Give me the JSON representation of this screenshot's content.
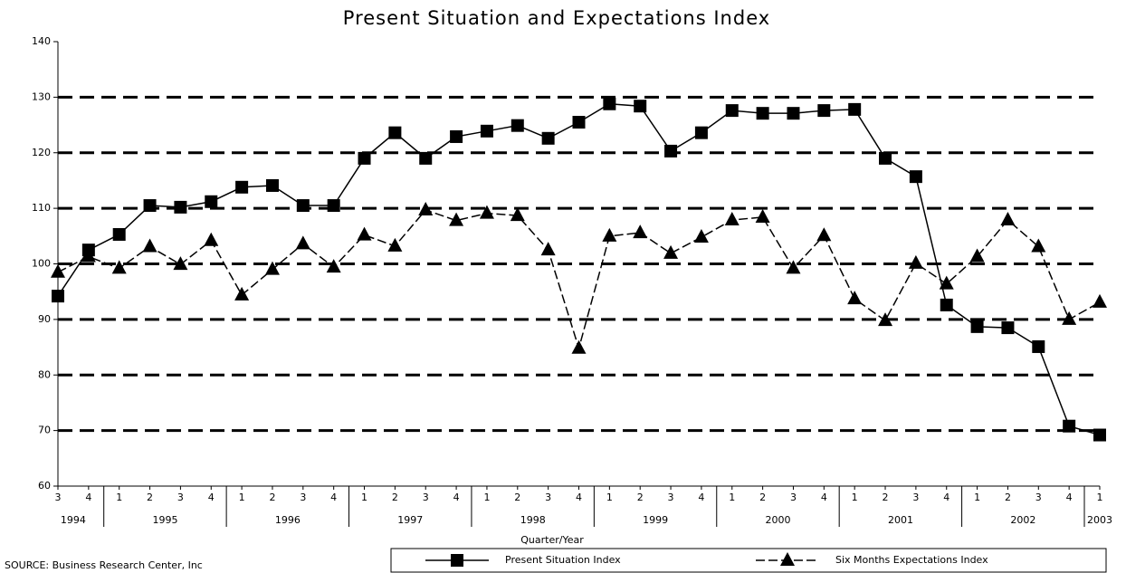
{
  "chart_data": {
    "type": "line",
    "title": "Present Situation and Expectations Index",
    "x_label": "Quarter/Year",
    "source": "SOURCE: Business Research Center, Inc",
    "category_groups": [
      {
        "label": "1994",
        "categories": [
          "3",
          "4"
        ]
      },
      {
        "label": "1995",
        "categories": [
          "1",
          "2",
          "3",
          "4"
        ]
      },
      {
        "label": "1996",
        "categories": [
          "1",
          "2",
          "3",
          "4"
        ]
      },
      {
        "label": "1997",
        "categories": [
          "1",
          "2",
          "3",
          "4"
        ]
      },
      {
        "label": "1998",
        "categories": [
          "1",
          "2",
          "3",
          "4"
        ]
      },
      {
        "label": "1999",
        "categories": [
          "1",
          "2",
          "3",
          "4"
        ]
      },
      {
        "label": "2000",
        "categories": [
          "1",
          "2",
          "3",
          "4"
        ]
      },
      {
        "label": "2001",
        "categories": [
          "1",
          "2",
          "3",
          "4"
        ]
      },
      {
        "label": "2002",
        "categories": [
          "1",
          "2",
          "3",
          "4"
        ]
      },
      {
        "label": "2003",
        "categories": [
          "1"
        ]
      }
    ],
    "series": [
      {
        "name": "Present Situation Index",
        "color": "#000000",
        "marker": "square",
        "values": [
          94.2,
          102.5,
          105.3,
          110.5,
          110.2,
          111.2,
          113.8,
          114.1,
          110.5,
          110.5,
          119.0,
          123.6,
          119.0,
          122.9,
          123.9,
          124.9,
          122.6,
          125.5,
          128.8,
          128.4,
          120.3,
          123.6,
          127.6,
          127.1,
          127.1,
          127.6,
          127.8,
          119.0,
          115.7,
          92.6,
          88.7,
          88.5,
          85.1,
          70.8,
          69.2
        ]
      },
      {
        "name": "Six Months Expectations Index",
        "color": "#000000",
        "marker": "triangle",
        "values": [
          98.5,
          101.3,
          99.2,
          103.1,
          99.9,
          104.2,
          94.4,
          99.0,
          103.6,
          99.4,
          105.2,
          103.2,
          109.7,
          107.8,
          109.1,
          108.7,
          102.5,
          84.8,
          105.0,
          105.6,
          101.9,
          104.8,
          107.9,
          108.4,
          99.2,
          105.1,
          93.7,
          89.8,
          100.1,
          96.4,
          101.3,
          107.9,
          103.1,
          90.0,
          93.1
        ]
      }
    ],
    "ylim": [
      60,
      140
    ],
    "yticks": [
      60,
      70,
      80,
      90,
      100,
      110,
      120,
      130,
      140
    ],
    "grid": true
  }
}
